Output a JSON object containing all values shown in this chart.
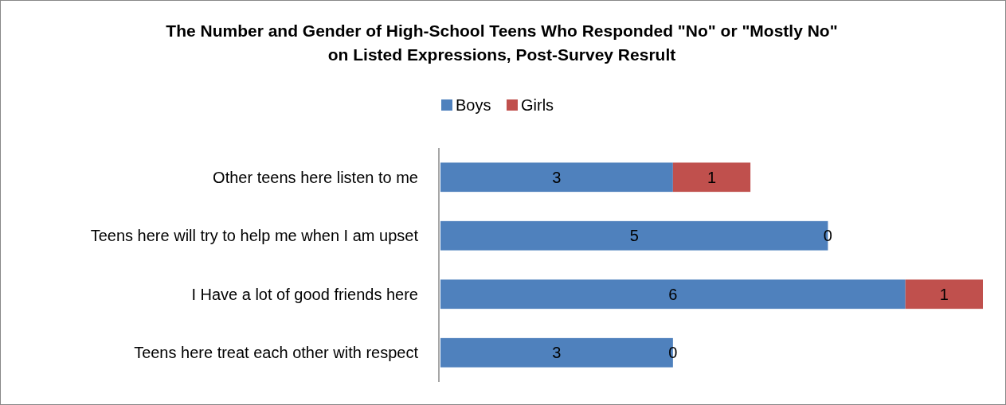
{
  "chart_data": {
    "type": "bar",
    "orientation": "horizontal",
    "stacked": true,
    "data_labels": true,
    "title": "The Number and Gender of High-School Teens Who Responded \"No\" or \"Mostly No\"\non Listed Expressions, Post-Survey Resrult",
    "categories": [
      "Other teens here listen to me",
      "Teens here will try to help me when I am upset",
      "I Have a lot of good friends here",
      "Teens here treat each other with respect"
    ],
    "legend": "top",
    "series": [
      {
        "name": "Boys",
        "color": "#4f81bd",
        "values": [
          3,
          5,
          6,
          3
        ]
      },
      {
        "name": "Girls",
        "color": "#c0504d",
        "values": [
          1,
          0,
          1,
          0
        ]
      }
    ]
  }
}
